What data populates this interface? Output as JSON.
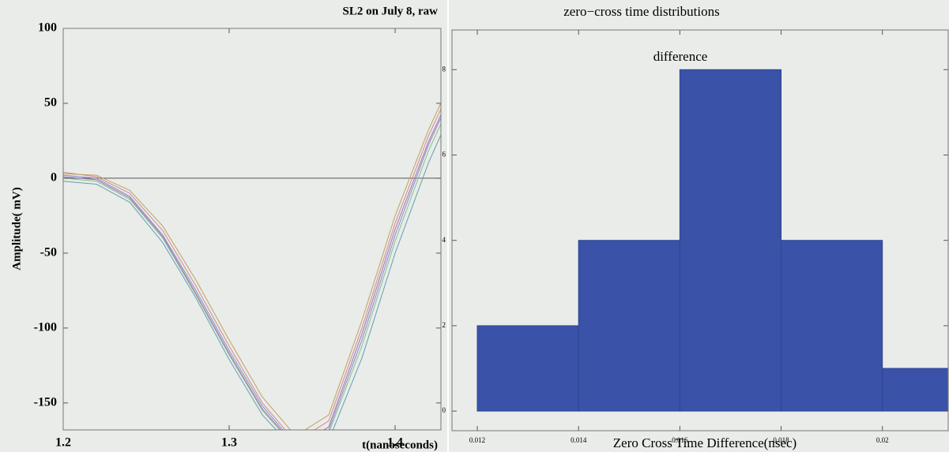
{
  "chart_data": [
    {
      "type": "line",
      "title": "SL2 on July 8, raw",
      "xlabel": "t(nanoseconds)",
      "ylabel": "Amplitude( mV)",
      "x": [
        1.2,
        1.22,
        1.24,
        1.26,
        1.28,
        1.3,
        1.32,
        1.34,
        1.36,
        1.38,
        1.4,
        1.42,
        1.44
      ],
      "series": [
        {
          "color": "#8a8ad0",
          "values": [
            2,
            0,
            -12,
            -38,
            -75,
            -115,
            -152,
            -178,
            -168,
            -108,
            -38,
            22,
            70
          ]
        },
        {
          "color": "#d08a8a",
          "values": [
            4,
            1,
            -10,
            -35,
            -72,
            -112,
            -150,
            -176,
            -162,
            -100,
            -30,
            28,
            76
          ]
        },
        {
          "color": "#8ac08a",
          "values": [
            0,
            -2,
            -14,
            -40,
            -78,
            -118,
            -155,
            -180,
            -170,
            -112,
            -42,
            18,
            66
          ]
        },
        {
          "color": "#c0a060",
          "values": [
            3,
            2,
            -8,
            -32,
            -68,
            -108,
            -146,
            -172,
            -158,
            -95,
            -25,
            32,
            80
          ]
        },
        {
          "color": "#a070b0",
          "values": [
            1,
            -1,
            -13,
            -39,
            -77,
            -117,
            -154,
            -179,
            -166,
            -104,
            -34,
            24,
            72
          ]
        },
        {
          "color": "#60a0b0",
          "values": [
            -2,
            -4,
            -16,
            -43,
            -80,
            -121,
            -158,
            -182,
            -175,
            -120,
            -50,
            10,
            60
          ]
        }
      ],
      "xlim": [
        1.2,
        1.4276
      ],
      "ylim": [
        -168,
        100
      ],
      "xticks": [
        1.2,
        1.3,
        1.4
      ],
      "yticks": [
        100,
        50,
        0,
        -50,
        -100,
        -150
      ]
    },
    {
      "type": "histogram",
      "title": "zero−cross time distributions",
      "annotation": "difference",
      "xlabel": "Zero Cross Time Difference(nsec)",
      "bins": [
        0.012,
        0.014,
        0.016,
        0.018,
        0.02,
        0.022
      ],
      "counts": [
        2,
        4,
        8,
        4,
        1
      ],
      "color": "#3a52a8",
      "xlim": [
        0.0115,
        0.0213
      ],
      "ylim": [
        -0.46,
        8.93
      ],
      "xticks": [
        0.012,
        0.014,
        0.016,
        0.018,
        0.02
      ],
      "yticks": [
        0,
        2,
        4,
        6,
        8
      ]
    }
  ]
}
